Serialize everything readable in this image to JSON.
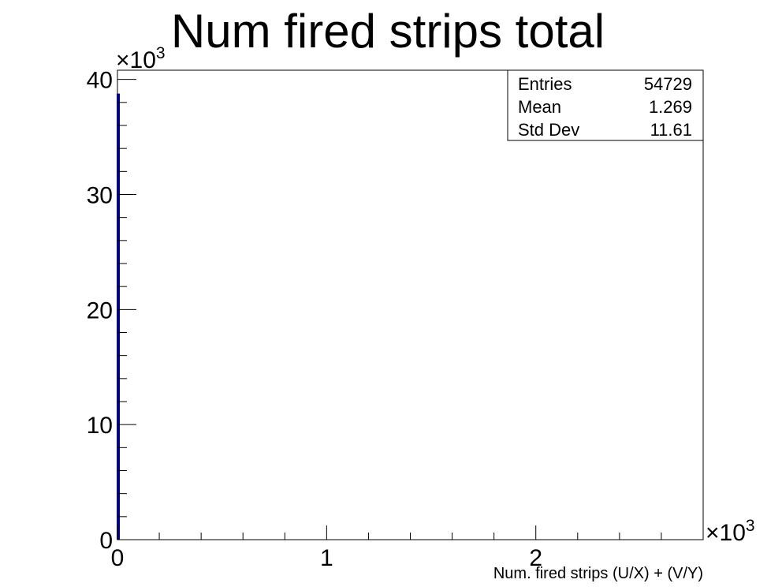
{
  "chart_data": {
    "type": "bar",
    "title": "Num fired strips total",
    "xlabel": "Num. fired strips (U/X) + (V/Y)",
    "ylabel": "",
    "x_exponent_label": "×10",
    "x_exponent_power": "3",
    "y_exponent_label": "×10",
    "y_exponent_power": "3",
    "xlim": [
      0,
      2.8
    ],
    "ylim": [
      0,
      40.8
    ],
    "x_major_ticks": [
      0,
      1,
      2
    ],
    "x_tick_labels": [
      "0",
      "1",
      "2"
    ],
    "y_major_ticks": [
      0,
      10,
      20,
      30,
      40
    ],
    "y_tick_labels": [
      "0",
      "10",
      "20",
      "30",
      "40"
    ],
    "bins": [
      {
        "x_low": 0.0,
        "x_high": 0.002,
        "value": 38.7
      }
    ],
    "line_color": "#000080",
    "grid": false,
    "legend": "none"
  },
  "stats_box": {
    "rows": [
      {
        "label": "Entries",
        "value": "54729"
      },
      {
        "label": "Mean",
        "value": "1.269"
      },
      {
        "label": "Std Dev",
        "value": "11.61"
      }
    ],
    "placement": "top-right"
  }
}
